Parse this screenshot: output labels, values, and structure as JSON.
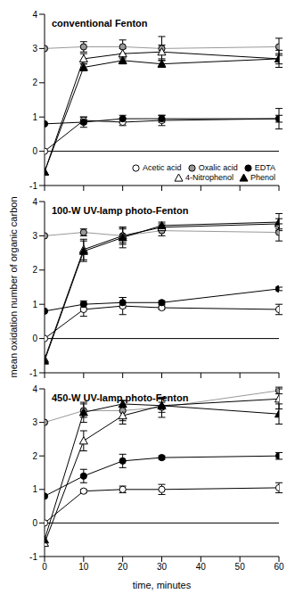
{
  "chart_data": [
    {
      "type": "line",
      "title": "conventional Fenton",
      "x": [
        0,
        10,
        20,
        30,
        60
      ],
      "xlim": [
        0,
        60
      ],
      "xticks": [
        0,
        10,
        20,
        30,
        40,
        50,
        60
      ],
      "ylim": [
        -1,
        4
      ],
      "yticks": [
        -1,
        0,
        1,
        2,
        3,
        4
      ],
      "reference_line": 0,
      "tick_labels": "y",
      "legend": "lower right",
      "series": [
        {
          "name": "Acetic acid",
          "color": "#000000",
          "marker": "open circle",
          "values": [
            0,
            0.9,
            0.85,
            0.9,
            0.95
          ],
          "errors": [
            0,
            0.1,
            0.1,
            0.15,
            0.1
          ]
        },
        {
          "name": "Oxalic acid",
          "color": "#999999",
          "marker": "circle",
          "values": [
            3,
            3.05,
            3.05,
            3.0,
            3.05
          ],
          "errors": [
            0,
            0.15,
            0.2,
            0.35,
            0.25
          ]
        },
        {
          "name": "EDTA",
          "color": "#000000",
          "marker": "circle",
          "values": [
            0.8,
            0.85,
            0.95,
            0.95,
            0.95
          ],
          "errors": [
            0,
            0.15,
            0.1,
            0.1,
            0.3
          ]
        },
        {
          "name": "4-Nitrophenol",
          "color": "#000000",
          "marker": "open triangle",
          "values": [
            -0.6,
            2.7,
            2.85,
            2.9,
            2.7
          ],
          "errors": [
            0,
            0.15,
            0.15,
            0.2,
            0.25
          ]
        },
        {
          "name": "Phenol",
          "color": "#000000",
          "marker": "triangle",
          "values": [
            -0.6,
            2.45,
            2.65,
            2.55,
            2.7
          ],
          "errors": [
            0,
            0.1,
            0.1,
            0.1,
            0.15
          ]
        }
      ]
    },
    {
      "type": "line",
      "title": "100-W UV-lamp photo-Fenton",
      "x": [
        0,
        10,
        20,
        30,
        60
      ],
      "xlim": [
        0,
        60
      ],
      "xticks": [
        0,
        10,
        20,
        30,
        40,
        50,
        60
      ],
      "ylim": [
        -1,
        4
      ],
      "yticks": [
        -1,
        0,
        1,
        2,
        3,
        4
      ],
      "reference_line": 0,
      "tick_labels": "y",
      "y_label": "mean oxidation number of organic carbon",
      "series": [
        {
          "name": "Acetic acid",
          "color": "#000000",
          "marker": "open circle",
          "values": [
            0,
            0.85,
            0.95,
            0.9,
            0.85
          ],
          "errors": [
            0,
            0.2,
            0.25,
            0.05,
            0.15
          ]
        },
        {
          "name": "Oxalic acid",
          "color": "#999999",
          "marker": "circle",
          "values": [
            3,
            3.1,
            3.0,
            3.15,
            3.1
          ],
          "errors": [
            0,
            0.1,
            0.2,
            0.15,
            0.25
          ]
        },
        {
          "name": "EDTA",
          "color": "#000000",
          "marker": "circle",
          "values": [
            0.8,
            1.0,
            1.05,
            1.05,
            1.45
          ],
          "errors": [
            0,
            0.1,
            0.15,
            0.05,
            0.05
          ]
        },
        {
          "name": "4-Nitrophenol",
          "color": "#000000",
          "marker": "open triangle",
          "values": [
            -0.6,
            2.6,
            3.0,
            3.25,
            3.35
          ],
          "errors": [
            0,
            0.3,
            0.25,
            0.1,
            0.15
          ]
        },
        {
          "name": "Phenol",
          "color": "#000000",
          "marker": "triangle",
          "values": [
            -0.65,
            2.55,
            2.95,
            3.3,
            3.4
          ],
          "errors": [
            0,
            0.3,
            0.3,
            0.1,
            0.25
          ]
        }
      ]
    },
    {
      "type": "line",
      "title": "450-W UV-lamp photo-Fenton",
      "x": [
        0,
        10,
        20,
        30,
        60
      ],
      "xlim": [
        0,
        60
      ],
      "xticks": [
        0,
        10,
        20,
        30,
        40,
        50,
        60
      ],
      "ylim": [
        -1,
        4
      ],
      "yticks": [
        -1,
        0,
        1,
        2,
        3,
        4
      ],
      "reference_line": 0,
      "x_label": "time, minutes",
      "series": [
        {
          "name": "Acetic acid",
          "color": "#000000",
          "marker": "open circle",
          "values": [
            0,
            0.95,
            1.0,
            1.0,
            1.05
          ],
          "errors": [
            0,
            0.05,
            0.1,
            0.15,
            0.15
          ]
        },
        {
          "name": "Oxalic acid",
          "color": "#999999",
          "marker": "circle",
          "values": [
            3,
            3.35,
            3.35,
            3.45,
            3.95
          ],
          "errors": [
            0,
            0.2,
            0.3,
            0.3,
            0.1
          ]
        },
        {
          "name": "EDTA",
          "color": "#000000",
          "marker": "circle",
          "values": [
            0.8,
            1.4,
            1.85,
            1.95,
            2.0
          ],
          "errors": [
            0,
            0.2,
            0.2,
            0.05,
            0.1
          ]
        },
        {
          "name": "4-Nitrophenol",
          "color": "#000000",
          "marker": "open triangle",
          "values": [
            -0.6,
            2.45,
            3.2,
            3.5,
            3.7
          ],
          "errors": [
            0,
            0.3,
            0.25,
            0.2,
            0.3
          ]
        },
        {
          "name": "Phenol",
          "color": "#000000",
          "marker": "triangle",
          "values": [
            -0.5,
            3.3,
            3.55,
            3.5,
            3.25
          ],
          "errors": [
            0,
            0.3,
            0.1,
            0.1,
            0.3
          ]
        }
      ]
    }
  ]
}
